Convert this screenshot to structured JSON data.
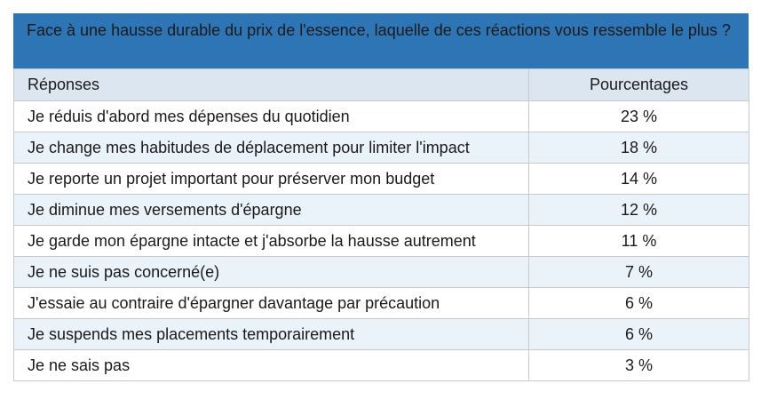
{
  "question": "Face à une hausse durable du prix de l'essence, laquelle de ces réactions vous ressemble le plus ?",
  "table": {
    "headers": {
      "responses": "Réponses",
      "percentages": "Pourcentages"
    },
    "rows": [
      {
        "response": "Je réduis d'abord mes dépenses du quotidien",
        "percentage": "23 %"
      },
      {
        "response": "Je change mes habitudes de déplacement pour limiter l'impact",
        "percentage": "18 %"
      },
      {
        "response": "Je reporte un projet important pour préserver mon budget",
        "percentage": "14 %"
      },
      {
        "response": "Je diminue mes versements d'épargne",
        "percentage": "12 %"
      },
      {
        "response": "Je garde mon épargne intacte et j'absorbe la hausse autrement",
        "percentage": "11 %"
      },
      {
        "response": "Je ne suis pas concerné(e)",
        "percentage": "7 %"
      },
      {
        "response": "J'essaie au contraire d'épargner davantage par précaution",
        "percentage": "6 %"
      },
      {
        "response": "Je suspends mes placements temporairement",
        "percentage": "6 %"
      },
      {
        "response": "Je ne sais pas",
        "percentage": "3 %"
      }
    ]
  },
  "colors": {
    "header_band": "#2e75b6",
    "column_header": "#dce6f1",
    "row_alt": "#eaf2fa",
    "border": "#c9c9c9"
  }
}
